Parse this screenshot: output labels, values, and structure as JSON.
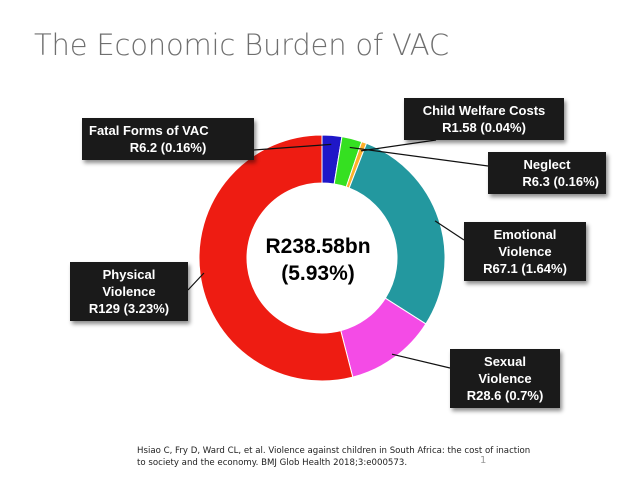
{
  "slide": {
    "title": "The Economic Burden of VAC",
    "citation": "Hsiao C, Fry D, Ward CL, et al. Violence against children in South Africa: the cost of inaction to society and the economy. BMJ Glob Health 2018;3:e000573.",
    "page_number": "1"
  },
  "chart_data": {
    "type": "pie",
    "donut": true,
    "title": "",
    "center_label": [
      "R238.58bn",
      "(5.93%)"
    ],
    "slices": [
      {
        "label": "Fatal Forms of VAC",
        "value": 6.2,
        "percent": 0.16,
        "color": "#1f17c8",
        "callout": [
          "Fatal Forms of VAC",
          "R6.2 (0.16%)"
        ]
      },
      {
        "label": "Child Welfare Costs",
        "value": 1.58,
        "percent": 0.04,
        "color": "#ffb02a",
        "callout": [
          "Child Welfare Costs",
          "R1.58 (0.04%)"
        ]
      },
      {
        "label": "Neglect",
        "value": 6.3,
        "percent": 0.16,
        "color": "#35e021",
        "callout": [
          "Neglect",
          "R6.3 (0.16%)"
        ]
      },
      {
        "label": "Emotional Violence",
        "value": 67.1,
        "percent": 1.64,
        "color": "#23989f",
        "callout": [
          "Emotional",
          "Violence",
          "R67.1 (1.64%)"
        ]
      },
      {
        "label": "Sexual Violence",
        "value": 28.6,
        "percent": 0.7,
        "color": "#f44be6",
        "callout": [
          "Sexual",
          "Violence",
          "R28.6 (0.7%)"
        ]
      },
      {
        "label": "Physical Violence",
        "value": 129,
        "percent": 3.23,
        "color": "#ee1c12",
        "callout": [
          "Physical",
          "Violence",
          "R129 (3.23%)"
        ]
      }
    ]
  }
}
